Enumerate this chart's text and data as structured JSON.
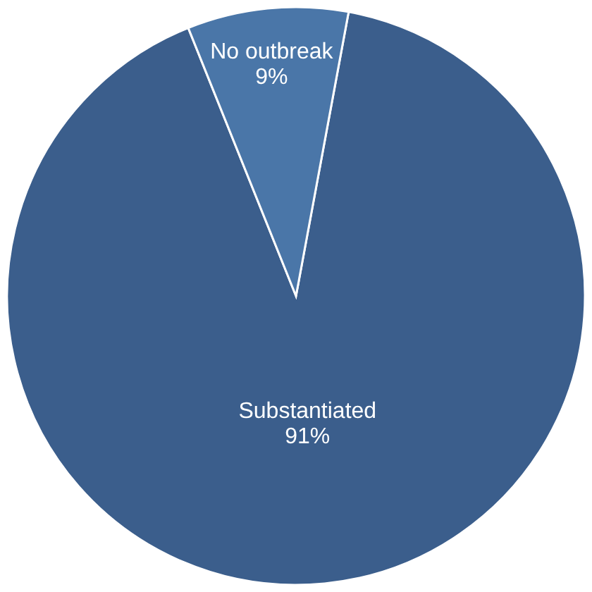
{
  "chart_data": {
    "type": "pie",
    "categories": [
      "Substantiated",
      "No outbreak"
    ],
    "values": [
      91,
      9
    ],
    "value_labels": [
      "91%",
      "9%"
    ],
    "colors": [
      "#3b5e8c",
      "#4a76a8"
    ]
  }
}
